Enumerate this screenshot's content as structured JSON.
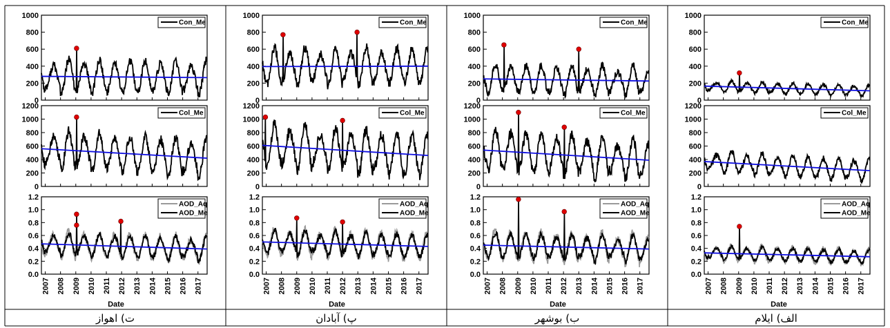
{
  "panels": [
    {
      "caption": "ت) اهواز",
      "seed": 11
    },
    {
      "caption": "پ) آبادان",
      "seed": 23
    },
    {
      "caption": "ب) بوشهر",
      "seed": 37
    },
    {
      "caption": "الف) ایلام",
      "seed": 53
    }
  ],
  "chart_data": {
    "type": "line",
    "xlabel": "Date",
    "x_ticks": [
      "2007",
      "2008",
      "2009",
      "2010",
      "2011",
      "2012",
      "2013",
      "2014",
      "2015",
      "2016",
      "2017"
    ],
    "x_range": [
      "2006-09",
      "2017-07"
    ],
    "rows": [
      {
        "name": "Con",
        "ylim": [
          0,
          1000
        ],
        "yticks": [
          0,
          200,
          400,
          600,
          800,
          1000
        ],
        "legend": [
          "Con_Me"
        ]
      },
      {
        "name": "Col",
        "ylim": [
          0,
          1200
        ],
        "yticks": [
          0,
          200,
          400,
          600,
          800,
          1000,
          1200
        ],
        "legend": [
          "Col_Me"
        ]
      },
      {
        "name": "AOD",
        "ylim": [
          0,
          1.2
        ],
        "yticks": [
          "0.0",
          "0.2",
          "0.4",
          "0.6",
          "0.8",
          "1.0",
          "1.2"
        ],
        "legend": [
          "AOD_Aq",
          "AOD_Me"
        ]
      }
    ],
    "colors": {
      "me": "#000000",
      "aq": "#9a9a9a",
      "trend": "#1010e0",
      "outlier": "#e00000"
    },
    "stations": [
      {
        "caption": "ت) اهواز",
        "con": {
          "base": 270,
          "amp": 180,
          "trend": [
            280,
            265
          ],
          "outliers": [
            [
              2009.05,
              610
            ]
          ]
        },
        "col": {
          "base": 470,
          "amp": 260,
          "trend": [
            560,
            420
          ],
          "outliers": [
            [
              2009.05,
              1030
            ]
          ]
        },
        "aod": {
          "base": 0.42,
          "amp": 0.16,
          "trend": [
            0.47,
            0.39
          ],
          "aq": true,
          "outliers": [
            [
              2009.05,
              0.93
            ],
            [
              2009.05,
              0.76
            ],
            [
              2011.95,
              0.82
            ]
          ]
        }
      },
      {
        "caption": "پ) آبادان",
        "con": {
          "base": 390,
          "amp": 200,
          "trend": [
            395,
            400
          ],
          "outliers": [
            [
              2008.1,
              770
            ],
            [
              2012.95,
              800
            ]
          ]
        },
        "col": {
          "base": 530,
          "amp": 300,
          "trend": [
            610,
            460
          ],
          "outliers": [
            [
              2006.95,
              1030
            ],
            [
              2012.0,
              980
            ]
          ]
        },
        "aod": {
          "base": 0.45,
          "amp": 0.17,
          "trend": [
            0.5,
            0.43
          ],
          "aq": true,
          "outliers": [
            [
              2009.0,
              0.87
            ],
            [
              2012.0,
              0.81
            ]
          ]
        }
      },
      {
        "caption": "ب) بوشهر",
        "con": {
          "base": 230,
          "amp": 160,
          "trend": [
            250,
            225
          ],
          "outliers": [
            [
              2008.1,
              650
            ],
            [
              2013.0,
              600
            ]
          ]
        },
        "col": {
          "base": 470,
          "amp": 280,
          "trend": [
            540,
            390
          ],
          "outliers": [
            [
              2009.05,
              1100
            ],
            [
              2012.05,
              880
            ]
          ]
        },
        "aod": {
          "base": 0.44,
          "amp": 0.18,
          "trend": [
            0.45,
            0.39
          ],
          "aq": true,
          "outliers": [
            [
              2009.05,
              1.16
            ],
            [
              2012.05,
              0.97
            ]
          ]
        }
      },
      {
        "caption": "الف) ایلام",
        "con": {
          "base": 145,
          "amp": 60,
          "trend": [
            165,
            110
          ],
          "outliers": [
            [
              2009.05,
              320
            ]
          ]
        },
        "col": {
          "base": 320,
          "amp": 150,
          "trend": [
            370,
            235
          ],
          "outliers": []
        },
        "aod": {
          "base": 0.3,
          "amp": 0.1,
          "trend": [
            0.33,
            0.27
          ],
          "aq": true,
          "outliers": [
            [
              2009.05,
              0.74
            ]
          ]
        }
      }
    ]
  }
}
